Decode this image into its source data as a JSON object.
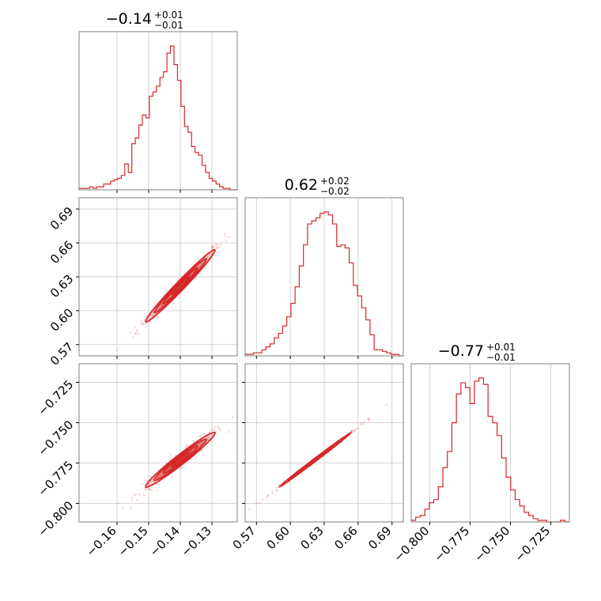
{
  "chart_data": {
    "type": "corner",
    "series_color": "#d62728",
    "parameters": [
      {
        "index": 0,
        "title": {
          "main": "−0.14",
          "sup": "+0.01",
          "sub": "−0.01"
        },
        "range": [
          -0.172,
          -0.122
        ],
        "ticks": [
          -0.16,
          -0.15,
          -0.14,
          -0.13
        ],
        "tick_labels": [
          "−0.16",
          "−0.15",
          "−0.14",
          "−0.13"
        ],
        "median": -0.14,
        "sigma": 0.0055,
        "hist_counts": [
          1,
          1,
          1,
          2,
          1,
          2,
          2,
          4,
          4,
          6,
          7,
          8,
          10,
          18,
          12,
          32,
          36,
          45,
          52,
          50,
          65,
          68,
          72,
          78,
          82,
          95,
          100,
          87,
          76,
          58,
          44,
          40,
          30,
          26,
          24,
          17,
          12,
          8,
          6,
          4,
          2,
          1,
          1,
          0,
          0
        ]
      },
      {
        "index": 1,
        "title": {
          "main": "0.62",
          "sup": "+0.02",
          "sub": "−0.02"
        },
        "range": [
          0.56,
          0.7
        ],
        "ticks": [
          0.57,
          0.6,
          0.63,
          0.66,
          0.69
        ],
        "tick_labels": [
          "0.57",
          "0.60",
          "0.63",
          "0.66",
          "0.69"
        ],
        "median": 0.622,
        "sigma": 0.016,
        "hist_counts": [
          1,
          1,
          2,
          2,
          4,
          6,
          8,
          12,
          15,
          20,
          26,
          35,
          46,
          60,
          74,
          88,
          90,
          92,
          95,
          96,
          94,
          88,
          73,
          74,
          72,
          62,
          47,
          40,
          32,
          24,
          14,
          4,
          4,
          3,
          2,
          1,
          1,
          0
        ]
      },
      {
        "index": 2,
        "title": {
          "main": "−0.77",
          "sup": "+0.01",
          "sub": "−0.01"
        },
        "range": [
          -0.8115,
          -0.7135
        ],
        "ticks": [
          -0.8,
          -0.775,
          -0.75,
          -0.725
        ],
        "tick_labels": [
          "−0.800",
          "−0.775",
          "−0.750",
          "−0.725"
        ],
        "median": -0.773,
        "sigma": 0.0085,
        "hist_counts": [
          1,
          3,
          4,
          8,
          12,
          14,
          22,
          34,
          44,
          62,
          80,
          87,
          84,
          74,
          88,
          90,
          86,
          66,
          62,
          54,
          40,
          28,
          20,
          14,
          10,
          6,
          4,
          2,
          1,
          1,
          0,
          0,
          0,
          1,
          0
        ]
      }
    ],
    "pairs": [
      {
        "x": 0,
        "y": 1,
        "correlation": 0.985
      },
      {
        "x": 0,
        "y": 2,
        "correlation": 0.975
      },
      {
        "x": 1,
        "y": 2,
        "correlation": 0.998
      }
    ],
    "contour_levels": [
      0.5,
      1.0,
      1.5,
      2.0
    ],
    "grid": true
  }
}
